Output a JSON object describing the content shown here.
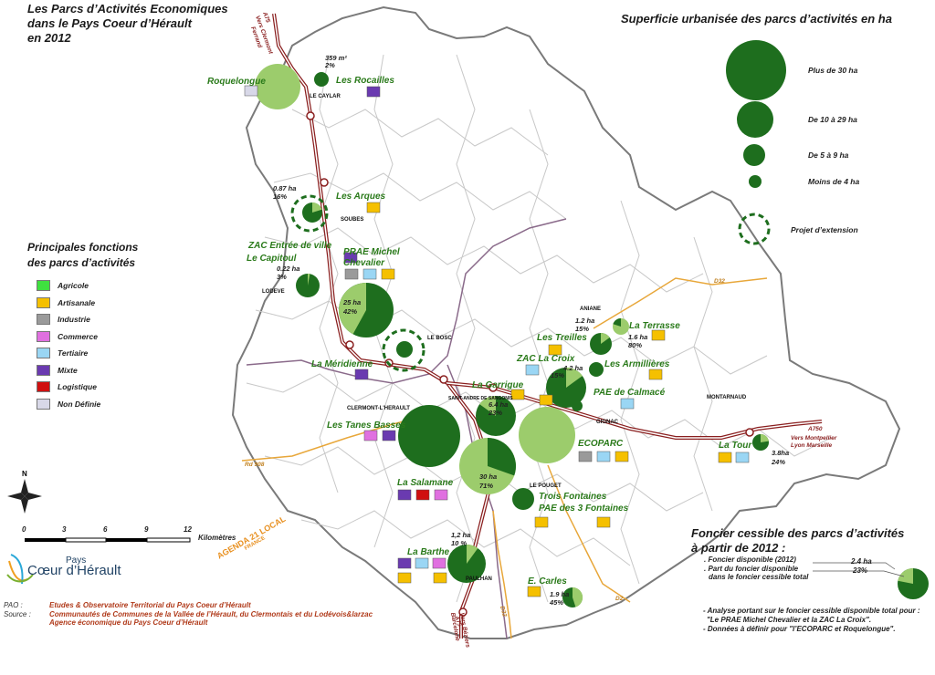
{
  "title": {
    "line1": "Les Parcs d’Activités Economiques",
    "line2": "dans le Pays Coeur d’Hérault",
    "line3": "en 2012"
  },
  "colors": {
    "dark_green": "#1e6e1e",
    "light_green": "#9ccc6c",
    "road_red": "#8a1f1f",
    "road_orange": "#e8a73a",
    "boundary": "#7a7a7a",
    "agricole": "#3fe03f",
    "artisanale": "#f5c000",
    "industrie": "#9a9a9a",
    "commerce": "#e070e0",
    "tertiaire": "#9ad6f4",
    "mixte": "#6a3ab0",
    "logistique": "#d01010",
    "non_definie": "#d8d8e8"
  },
  "legend_size": {
    "title": "Superficie urbanisée des parcs d’activités en ha",
    "items": [
      "Plus de 30 ha",
      "De 10 à 29 ha",
      "De 5 à 9 ha",
      "Moins de 4 ha",
      "Projet d’extension"
    ]
  },
  "legend_functions": {
    "title_line1": "Principales fonctions",
    "title_line2": "des parcs d’activités",
    "items": [
      {
        "label": "Agricole",
        "color": "#3fe03f"
      },
      {
        "label": "Artisanale",
        "color": "#f5c000"
      },
      {
        "label": "Industrie",
        "color": "#9a9a9a"
      },
      {
        "label": "Commerce",
        "color": "#e070e0"
      },
      {
        "label": "Tertiaire",
        "color": "#9ad6f4"
      },
      {
        "label": "Mixte",
        "color": "#6a3ab0"
      },
      {
        "label": "Logistique",
        "color": "#d01010"
      },
      {
        "label": "Non Définie",
        "color": "#d8d8e8"
      }
    ]
  },
  "foncier": {
    "title_line1": "Foncier cessible des parcs d’activités",
    "title_line2": "à partir de 2012 :",
    "note1": ". Foncier disponible (2012)",
    "note2": ". Part du foncier disponible",
    "note3": "dans le foncier cessible total",
    "value1": "2.4 ha",
    "value2": "23%",
    "analysis1": "- Analyse portant sur le foncier cessible disponible total pour :",
    "analysis2": "\"Le PRAE Michel Chevalier et la ZAC La Croix\".",
    "analysis3": "- Données à définir pour \"l’ECOPARC et Roquelongue\"."
  },
  "scale": {
    "ticks": [
      "0",
      "3",
      "6",
      "9",
      "12"
    ],
    "unit": "Kilomètres"
  },
  "north": "N",
  "logo": {
    "line1": "Pays",
    "line2": "Cœur d’Hérault",
    "agenda": "AGENDA 21 LOCAL",
    "agenda_sub": "FRANCE"
  },
  "credits": {
    "pao_key": "PAO :",
    "pao_val": "Etudes & Observatoire Territorial du Pays Coeur d’Hérault",
    "source_key": "Source :",
    "source_val1": "Communautés de Communes de la Vallée de l’Hérault, du Clermontais et du Lodévois&larzac",
    "source_val2": "Agence économique du Pays Coeur d’Hérault"
  },
  "parks": [
    {
      "name": "Roquelongue",
      "share": null
    },
    {
      "name": "Les Rocailles",
      "value": "359 m²",
      "percent": "2%"
    },
    {
      "name": "Les Arques",
      "value": "0.87 ha",
      "percent": "16%"
    },
    {
      "name_line1": "ZAC Entrée de ville",
      "name_line2": "Le Capitoul",
      "value": "0.22 ha",
      "percent": "3%"
    },
    {
      "name_line1": "PRAE Michel",
      "name_line2": "Chevalier",
      "value": "25 ha",
      "percent": "42%"
    },
    {
      "name": "La Méridienne"
    },
    {
      "name": "Les Tanes Basses"
    },
    {
      "name": "La Salamane"
    },
    {
      "name": "La Barthe",
      "value": "1,2 ha",
      "percent": "10 %"
    },
    {
      "name": "La Garrigue",
      "value": "6.4 ha",
      "percent": "23%"
    },
    {
      "value": "30 ha",
      "percent": "71%"
    },
    {
      "name_line1": "Trois Fontaines",
      "name_line2": "PAE des 3 Fontaines"
    },
    {
      "name": "E. Carles",
      "value": "1.9 ha",
      "percent": "45%"
    },
    {
      "name": "ECOPARC"
    },
    {
      "name": "ZAC La Croix",
      "value": "4.2 ha",
      "percent": "15%"
    },
    {
      "name": "Les Treilles",
      "value": "1.2 ha",
      "percent": "15%"
    },
    {
      "name": "La Terrasse",
      "value": "1.6 ha",
      "percent": "80%"
    },
    {
      "name": "Les Armillières"
    },
    {
      "name": "PAE de Calmacé"
    },
    {
      "name": "La Tour",
      "value": "3.8ha",
      "percent": "24%"
    }
  ],
  "towns": [
    "LE CAYLAR",
    "SOUBES",
    "LODEVE",
    "LE BOSC",
    "CLERMONT-L'HERAULT",
    "SAINT-ANDRE DE SANGONIS",
    "ANIANE",
    "GIGNAC",
    "MONTARNAUD",
    "LE POUGET",
    "PAULHAN"
  ],
  "roads": {
    "a75_top_1": "A75",
    "a75_top_2": "Vers Clermont",
    "a75_top_3": "Ferrand",
    "a750": "A750",
    "a750_dir1": "Vers Montpellier",
    "a750_dir2": "Lyon Marseille",
    "d32_top": "D32",
    "d908": "Rd 908",
    "d32_bottom": "D32",
    "d2": "D2",
    "a75_bot_1": "A75",
    "a75_bot_2": "Vers Béziers",
    "a75_bot_3": "Barcelone"
  }
}
